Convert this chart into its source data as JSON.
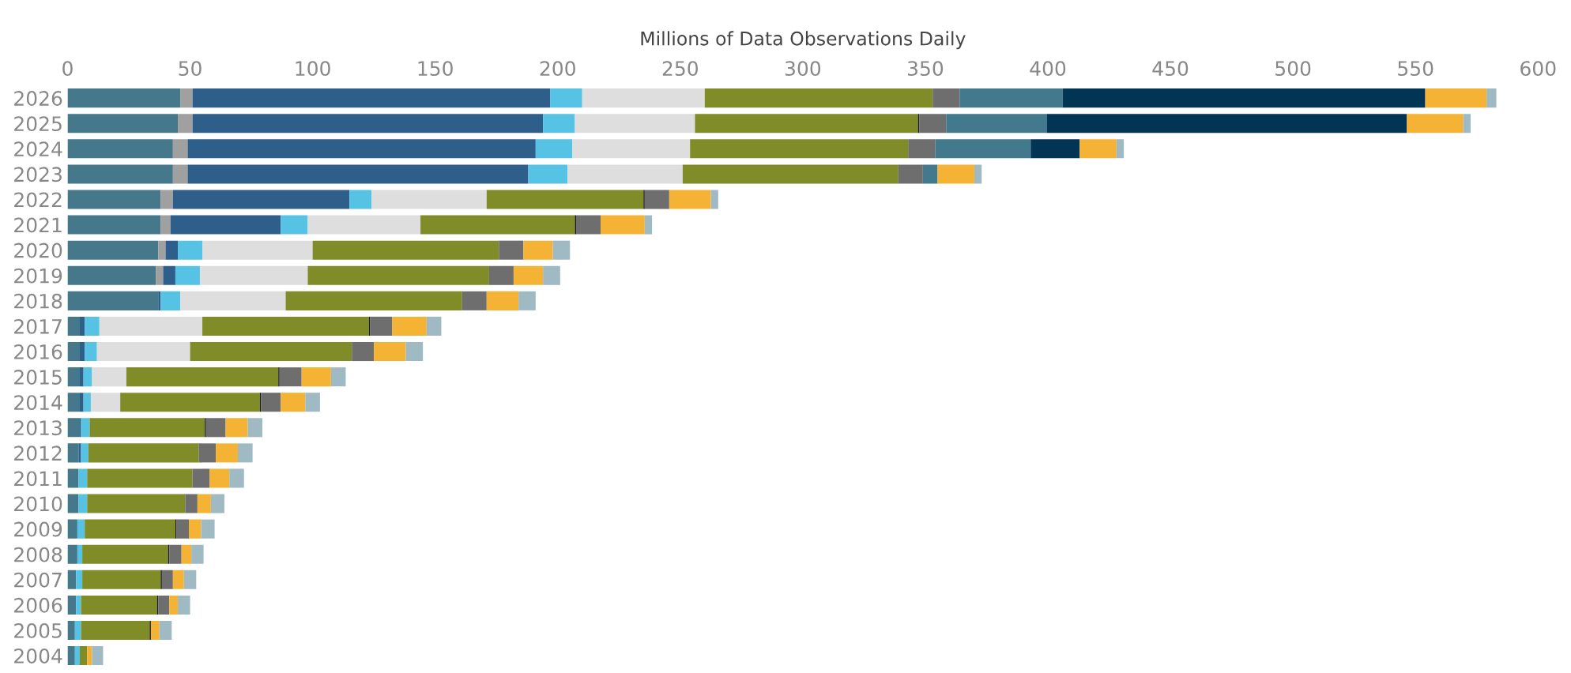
{
  "chart_data": {
    "type": "bar",
    "orientation": "horizontal",
    "stacked": true,
    "xlabel": "Millions of Data Observations Daily",
    "categories": [
      "2026",
      "2025",
      "2024",
      "2023",
      "2022",
      "2021",
      "2020",
      "2019",
      "2018",
      "2017",
      "2016",
      "2015",
      "2014",
      "2013",
      "2012",
      "2011",
      "2010",
      "2009",
      "2008",
      "2007",
      "2006",
      "2005",
      "2004"
    ],
    "series": [
      {
        "color": "#45788a",
        "values": [
          46,
          45,
          43,
          43,
          38,
          38,
          37,
          36,
          37,
          5,
          5,
          5,
          5,
          5,
          4.5,
          4.5,
          4.5,
          4,
          4,
          3.5,
          3.5,
          3,
          3
        ]
      },
      {
        "color": "#a0a0a0",
        "values": [
          5,
          6,
          6,
          6,
          5,
          4,
          3,
          3,
          0,
          0,
          0,
          0,
          0,
          0,
          0,
          0,
          0,
          0,
          0,
          0,
          0,
          0,
          0
        ]
      },
      {
        "color": "#2e5f8a",
        "values": [
          146,
          143,
          142,
          139,
          72,
          45,
          5,
          5,
          1,
          2,
          2,
          1.5,
          1.5,
          0.5,
          1,
          0,
          0,
          0,
          0,
          0,
          0,
          0,
          0
        ]
      },
      {
        "color": "#56c3e4",
        "values": [
          13,
          13,
          15,
          16,
          9,
          11,
          10,
          10,
          8,
          6,
          5,
          3.5,
          3,
          3.5,
          3,
          3.5,
          3.5,
          3,
          2,
          2.5,
          2,
          2.5,
          2
        ]
      },
      {
        "color": "#dedede",
        "values": [
          50,
          49,
          48,
          47,
          47,
          46,
          45,
          44,
          43,
          42,
          38,
          14,
          12,
          0,
          0,
          0,
          0,
          0,
          0,
          0,
          0,
          0,
          0
        ]
      },
      {
        "color": "#7f8c28",
        "values": [
          93,
          91,
          89,
          88,
          64,
          63,
          76,
          74,
          72,
          68,
          66,
          62,
          57,
          47,
          45,
          43,
          40,
          37,
          35,
          32,
          31,
          28,
          3
        ]
      },
      {
        "color": "#1a1a1a",
        "values": [
          0,
          0.5,
          0,
          0,
          0.5,
          0.5,
          0,
          0,
          0,
          0.5,
          0,
          0.5,
          0.5,
          0.5,
          0,
          0,
          0,
          0.5,
          0.5,
          0.5,
          0.5,
          0.5,
          0
        ]
      },
      {
        "color": "#6e6e6e",
        "values": [
          11,
          11,
          11,
          10,
          10,
          10,
          10,
          10,
          10,
          9,
          9,
          9,
          8,
          8,
          7,
          7,
          5,
          5,
          5,
          4.5,
          4.5,
          0,
          0
        ]
      },
      {
        "color": "#42798c",
        "values": [
          42,
          41,
          39,
          6,
          0,
          0,
          0,
          0,
          0,
          0,
          0,
          0,
          0,
          0,
          0,
          0,
          0,
          0,
          0,
          0,
          0,
          0,
          0
        ]
      },
      {
        "color": "#023554",
        "values": [
          148,
          147,
          20,
          0,
          0,
          0,
          0,
          0,
          0,
          0,
          0,
          0,
          0,
          0,
          0,
          0,
          0,
          0,
          0,
          0,
          0,
          0,
          0
        ]
      },
      {
        "color": "#f5b335",
        "values": [
          25,
          23,
          15,
          15,
          17,
          18,
          12,
          12,
          13,
          14,
          13,
          12,
          10,
          9,
          9,
          8,
          5.5,
          5,
          4,
          4.5,
          3.5,
          3.5,
          2
        ]
      },
      {
        "color": "#a0bac4",
        "values": [
          4,
          3,
          3,
          3,
          3,
          3,
          7,
          7,
          7,
          6,
          7,
          6,
          6,
          6,
          6,
          6,
          5.5,
          5.5,
          5,
          5,
          5,
          5,
          4.5
        ]
      }
    ],
    "xlim": [
      0,
      600
    ],
    "xticks": [
      0,
      50,
      100,
      150,
      200,
      250,
      300,
      350,
      400,
      450,
      500,
      550,
      600
    ],
    "grid": false
  }
}
